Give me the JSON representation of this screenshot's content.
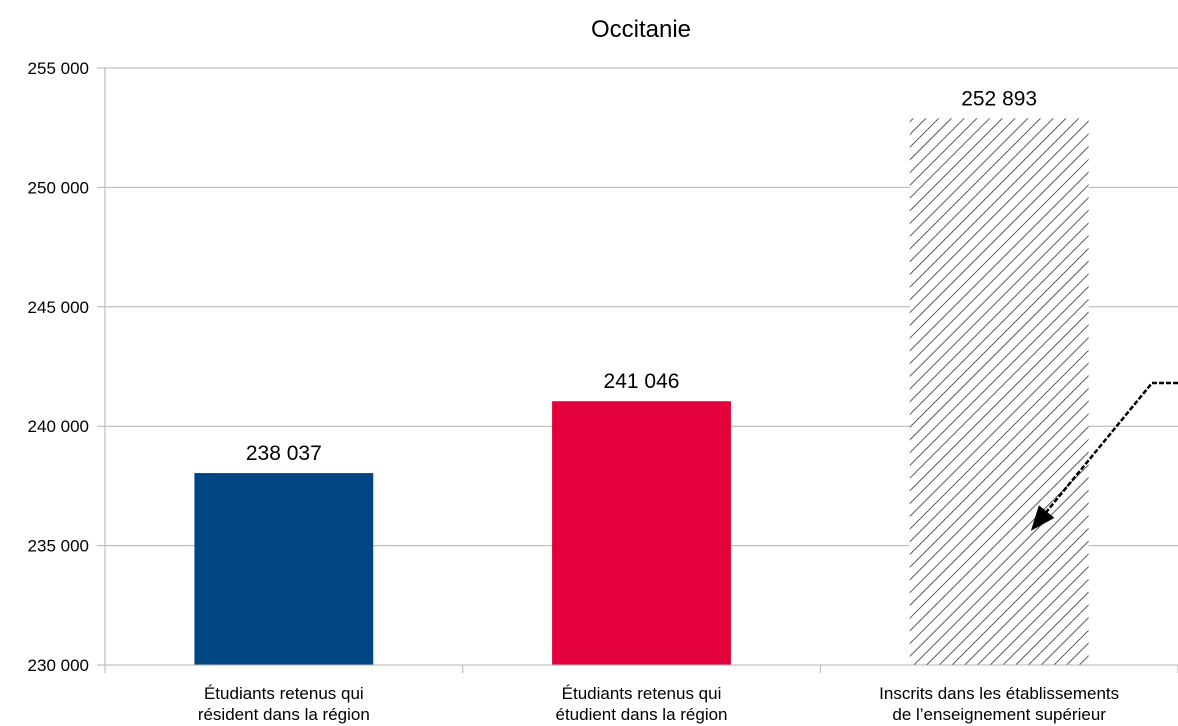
{
  "chart_data": {
    "type": "bar",
    "title": "Occitanie",
    "xlabel": "",
    "ylabel": "",
    "ylim": [
      230000,
      255000
    ],
    "yticks": [
      230000,
      235000,
      240000,
      245000,
      250000,
      255000
    ],
    "ytick_labels": [
      "230 000",
      "235 000",
      "240 000",
      "245 000",
      "250 000",
      "255 000"
    ],
    "grid": true,
    "legend": "none",
    "categories": [
      [
        "Étudiants retenus qui",
        "résident dans la région"
      ],
      [
        "Étudiants retenus qui",
        "étudient dans la région"
      ],
      [
        "Inscrits dans les établissements",
        "de l’enseignement supérieur"
      ]
    ],
    "values": [
      238037,
      241046,
      252893
    ],
    "value_labels": [
      "238 037",
      "241 046",
      "252 893"
    ],
    "colors": [
      "#004684",
      "#e4003a",
      "hatched"
    ],
    "annotations": [
      {
        "type": "arrow",
        "style": "dashed",
        "points_to": "Inscrits dans les établissements"
      }
    ]
  }
}
